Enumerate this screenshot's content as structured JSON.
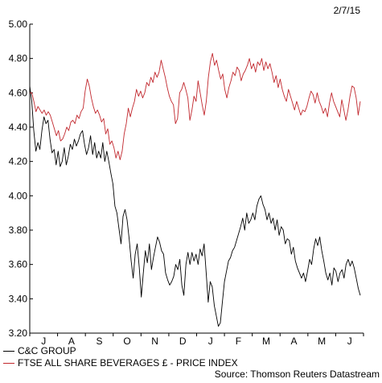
{
  "date_label": "2/7/15",
  "source": "Source: Thomson Reuters Datastream",
  "chart_data": {
    "type": "line",
    "y_ticks": [
      "5.00",
      "4.80",
      "4.60",
      "4.40",
      "4.20",
      "4.00",
      "3.80",
      "3.60",
      "3.40",
      "3.20"
    ],
    "ylim": [
      3.2,
      5.0
    ],
    "x_ticks": [
      "J",
      "A",
      "S",
      "O",
      "N",
      "D",
      "J",
      "F",
      "M",
      "A",
      "M",
      "J"
    ],
    "grid": false,
    "series": [
      {
        "name": "C&C GROUP",
        "color": "#000000",
        "values": [
          4.64,
          4.55,
          4.38,
          4.26,
          4.31,
          4.27,
          4.38,
          4.46,
          4.42,
          4.44,
          4.33,
          4.25,
          4.27,
          4.18,
          4.26,
          4.17,
          4.2,
          4.28,
          4.18,
          4.23,
          4.3,
          4.27,
          4.33,
          4.29,
          4.32,
          4.36,
          4.38,
          4.3,
          4.24,
          4.28,
          4.35,
          4.24,
          4.31,
          4.22,
          4.26,
          4.22,
          4.31,
          4.2,
          4.26,
          4.2,
          4.13,
          4.07,
          3.94,
          3.9,
          3.81,
          3.72,
          3.88,
          3.92,
          3.86,
          3.75,
          3.62,
          3.52,
          3.66,
          3.72,
          3.58,
          3.41,
          3.55,
          3.68,
          3.61,
          3.72,
          3.57,
          3.64,
          3.7,
          3.76,
          3.73,
          3.68,
          3.66,
          3.55,
          3.51,
          3.48,
          3.5,
          3.53,
          3.6,
          3.57,
          3.63,
          3.48,
          3.42,
          3.6,
          3.67,
          3.6,
          3.67,
          3.62,
          3.66,
          3.6,
          3.69,
          3.65,
          3.72,
          3.55,
          3.38,
          3.5,
          3.47,
          3.36,
          3.3,
          3.24,
          3.26,
          3.38,
          3.5,
          3.56,
          3.62,
          3.64,
          3.68,
          3.7,
          3.74,
          3.78,
          3.82,
          3.87,
          3.8,
          3.9,
          3.84,
          3.86,
          3.9,
          3.86,
          3.94,
          3.98,
          4.0,
          3.95,
          3.92,
          3.86,
          3.9,
          3.84,
          3.87,
          3.8,
          3.86,
          3.77,
          3.82,
          3.8,
          3.72,
          3.75,
          3.74,
          3.66,
          3.7,
          3.62,
          3.58,
          3.55,
          3.52,
          3.55,
          3.5,
          3.56,
          3.63,
          3.6,
          3.69,
          3.75,
          3.71,
          3.76,
          3.68,
          3.62,
          3.55,
          3.51,
          3.55,
          3.48,
          3.58,
          3.56,
          3.5,
          3.55,
          3.57,
          3.52,
          3.6,
          3.63,
          3.59,
          3.62,
          3.58,
          3.52,
          3.46,
          3.42
        ]
      },
      {
        "name": "FTSE ALL SHARE BEVERAGES £ - PRICE INDEX",
        "color": "#c1272d",
        "values": [
          4.6,
          4.6,
          4.55,
          4.49,
          4.52,
          4.5,
          4.48,
          4.5,
          4.47,
          4.49,
          4.47,
          4.43,
          4.39,
          4.35,
          4.38,
          4.32,
          4.33,
          4.36,
          4.4,
          4.38,
          4.43,
          4.44,
          4.42,
          4.47,
          4.45,
          4.49,
          4.51,
          4.61,
          4.68,
          4.64,
          4.57,
          4.52,
          4.48,
          4.5,
          4.47,
          4.43,
          4.45,
          4.36,
          4.39,
          4.3,
          4.32,
          4.28,
          4.22,
          4.26,
          4.21,
          4.26,
          4.36,
          4.42,
          4.51,
          4.46,
          4.51,
          4.55,
          4.62,
          4.58,
          4.61,
          4.57,
          4.6,
          4.66,
          4.64,
          4.69,
          4.66,
          4.72,
          4.69,
          4.72,
          4.79,
          4.74,
          4.69,
          4.63,
          4.58,
          4.55,
          4.53,
          4.42,
          4.45,
          4.6,
          4.62,
          4.66,
          4.62,
          4.57,
          4.44,
          4.5,
          4.58,
          4.55,
          4.67,
          4.6,
          4.53,
          4.47,
          4.55,
          4.69,
          4.78,
          4.83,
          4.76,
          4.79,
          4.73,
          4.68,
          4.71,
          4.62,
          4.57,
          4.63,
          4.67,
          4.72,
          4.7,
          4.75,
          4.73,
          4.67,
          4.71,
          4.73,
          4.76,
          4.8,
          4.74,
          4.77,
          4.72,
          4.78,
          4.76,
          4.8,
          4.73,
          4.78,
          4.74,
          4.77,
          4.72,
          4.66,
          4.7,
          4.63,
          4.68,
          4.62,
          4.58,
          4.55,
          4.62,
          4.58,
          4.54,
          4.5,
          4.55,
          4.51,
          4.47,
          4.5,
          4.49,
          4.52,
          4.57,
          4.61,
          4.59,
          4.54,
          4.6,
          4.55,
          4.52,
          4.48,
          4.51,
          4.46,
          4.54,
          4.6,
          4.55,
          4.52,
          4.49,
          4.46,
          4.56,
          4.5,
          4.44,
          4.5,
          4.58,
          4.64,
          4.63,
          4.57,
          4.47,
          4.55
        ]
      }
    ]
  }
}
